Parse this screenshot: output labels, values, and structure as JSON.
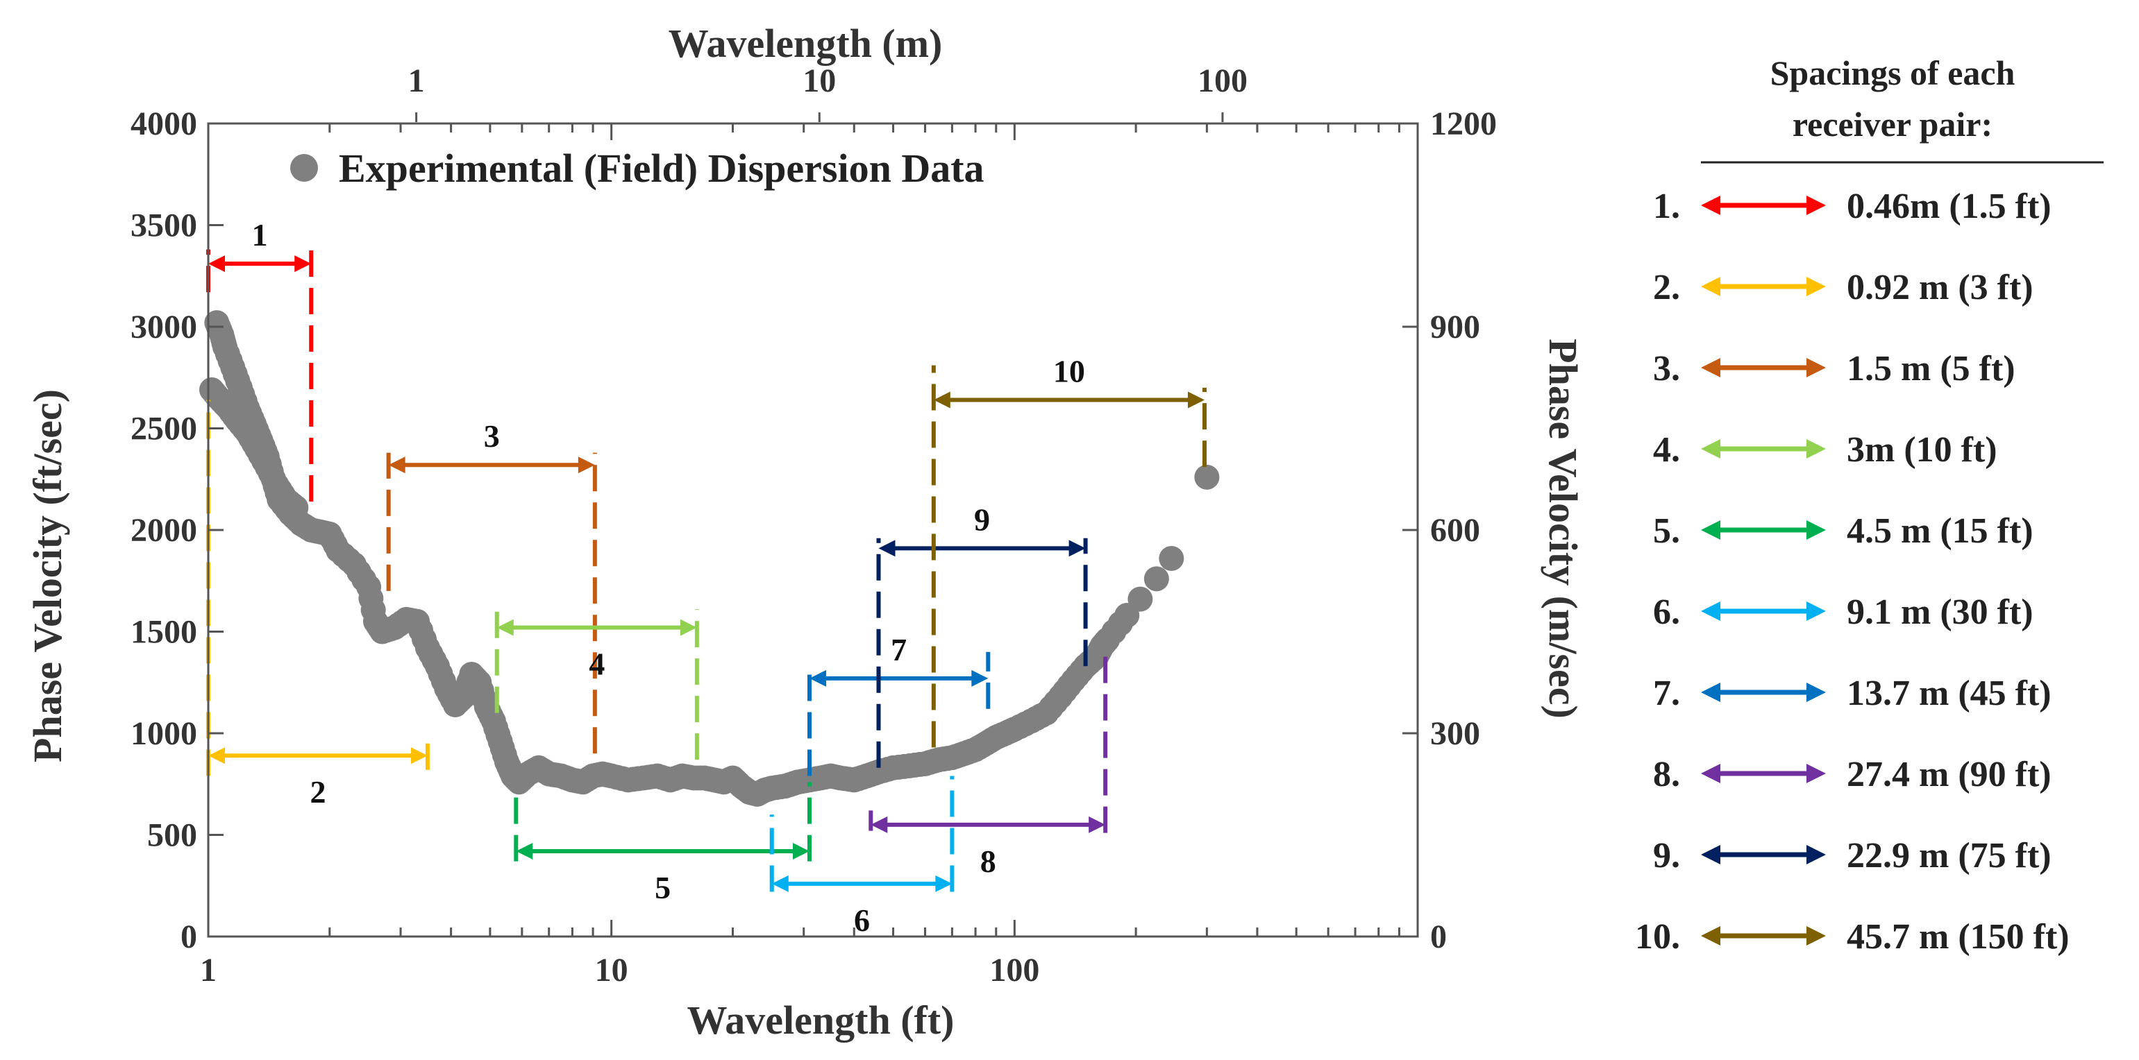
{
  "chart_data": {
    "type": "scatter",
    "x_scale": "log",
    "bottom_axis": {
      "label": "Wavelength (ft)",
      "range": [
        1,
        1000
      ],
      "ticks": [
        1,
        10,
        100
      ],
      "tick_labels": [
        "1",
        "10",
        "100"
      ]
    },
    "top_axis": {
      "label": "Wavelength (m)",
      "ticks": [
        1,
        10,
        100
      ],
      "tick_labels": [
        "1",
        "10",
        "100"
      ]
    },
    "left_axis": {
      "label": "Phase Velocity (ft/sec)",
      "range": [
        0,
        4000
      ],
      "ticks": [
        0,
        500,
        1000,
        1500,
        2000,
        2500,
        3000,
        3500,
        4000
      ],
      "tick_labels": [
        "0",
        "500",
        "1000",
        "1500",
        "2000",
        "2500",
        "3000",
        "3500",
        "4000"
      ]
    },
    "right_axis": {
      "label": "Phase Velocity (m/sec)",
      "ticks": [
        0,
        300,
        600,
        900,
        1200
      ],
      "tick_labels": [
        "0",
        "300",
        "600",
        "900",
        "1200"
      ]
    },
    "series": [
      {
        "name": "Experimental (Field) Dispersion Data",
        "marker_color": "#808080",
        "points": [
          [
            1.05,
            3020
          ],
          [
            1.08,
            2960
          ],
          [
            1.1,
            2900
          ],
          [
            1.15,
            2800
          ],
          [
            1.2,
            2700
          ],
          [
            1.25,
            2600
          ],
          [
            1.3,
            2520
          ],
          [
            1.35,
            2440
          ],
          [
            1.4,
            2360
          ],
          [
            1.45,
            2250
          ],
          [
            1.5,
            2150
          ],
          [
            1.6,
            2080
          ],
          [
            1.7,
            2030
          ],
          [
            1.8,
            2000
          ],
          [
            1.9,
            1990
          ],
          [
            2.0,
            1980
          ],
          [
            2.1,
            1900
          ],
          [
            2.3,
            1830
          ],
          [
            2.5,
            1720
          ],
          [
            2.6,
            1550
          ],
          [
            2.7,
            1500
          ],
          [
            2.9,
            1520
          ],
          [
            3.1,
            1560
          ],
          [
            3.3,
            1550
          ],
          [
            3.5,
            1420
          ],
          [
            3.7,
            1330
          ],
          [
            3.9,
            1220
          ],
          [
            4.1,
            1140
          ],
          [
            4.3,
            1180
          ],
          [
            4.5,
            1290
          ],
          [
            4.7,
            1250
          ],
          [
            4.9,
            1130
          ],
          [
            5.1,
            1060
          ],
          [
            5.3,
            960
          ],
          [
            5.5,
            860
          ],
          [
            5.7,
            790
          ],
          [
            5.9,
            760
          ],
          [
            6.2,
            800
          ],
          [
            6.6,
            830
          ],
          [
            7.0,
            800
          ],
          [
            7.5,
            790
          ],
          [
            8.0,
            770
          ],
          [
            8.5,
            760
          ],
          [
            9.0,
            790
          ],
          [
            9.5,
            800
          ],
          [
            10.0,
            790
          ],
          [
            11.0,
            770
          ],
          [
            12.0,
            780
          ],
          [
            13.0,
            790
          ],
          [
            14.0,
            770
          ],
          [
            15.0,
            790
          ],
          [
            16.0,
            780
          ],
          [
            17.0,
            780
          ],
          [
            18.0,
            770
          ],
          [
            19.0,
            760
          ],
          [
            20.0,
            780
          ],
          [
            21.0,
            740
          ],
          [
            22.0,
            710
          ],
          [
            23.0,
            700
          ],
          [
            24.0,
            720
          ],
          [
            25.0,
            730
          ],
          [
            27.0,
            740
          ],
          [
            29.0,
            760
          ],
          [
            31.0,
            770
          ],
          [
            33.0,
            780
          ],
          [
            35.0,
            790
          ],
          [
            37.0,
            780
          ],
          [
            40.0,
            770
          ],
          [
            43.0,
            790
          ],
          [
            46.0,
            810
          ],
          [
            50.0,
            830
          ],
          [
            55.0,
            840
          ],
          [
            60.0,
            850
          ],
          [
            65.0,
            870
          ],
          [
            70.0,
            880
          ],
          [
            75.0,
            900
          ],
          [
            80.0,
            920
          ],
          [
            85.0,
            950
          ],
          [
            90.0,
            980
          ],
          [
            95.0,
            1000
          ],
          [
            100.0,
            1020
          ],
          [
            110.0,
            1060
          ],
          [
            120.0,
            1100
          ],
          [
            130.0,
            1180
          ],
          [
            140.0,
            1260
          ],
          [
            150.0,
            1330
          ],
          [
            160.0,
            1380
          ],
          [
            165.0,
            1430
          ],
          [
            170.0,
            1460
          ],
          [
            190.0,
            1580
          ],
          [
            205.0,
            1660
          ],
          [
            225.0,
            1760
          ],
          [
            245.0,
            1860
          ],
          [
            300.0,
            2260
          ],
          [
            1.02,
            2690
          ],
          [
            1.06,
            2650
          ],
          [
            1.12,
            2600
          ],
          [
            1.18,
            2540
          ],
          [
            1.25,
            2480
          ],
          [
            1.32,
            2400
          ],
          [
            1.4,
            2310
          ],
          [
            1.48,
            2220
          ],
          [
            1.56,
            2150
          ],
          [
            1.65,
            2110
          ]
        ]
      }
    ],
    "ranges": [
      {
        "label": "1",
        "color": "#FF0000",
        "x1": 1.0,
        "x2": 1.8,
        "y_arrow": 3310,
        "dash_left": [
          3170,
          3380
        ],
        "dash_right": [
          2140,
          3380
        ],
        "label_dy": -1
      },
      {
        "label": "2",
        "color": "#FFC000",
        "x1": 1.0,
        "x2": 3.5,
        "y_arrow": 890,
        "dash_left": [
          790,
          2640
        ],
        "dash_right": [
          820,
          970
        ],
        "label_dy": 1
      },
      {
        "label": "3",
        "color": "#C55A11",
        "x1": 2.8,
        "x2": 9.1,
        "y_arrow": 2320,
        "dash_left": [
          1700,
          2380
        ],
        "dash_right": [
          900,
          2380
        ],
        "label_dy": -1
      },
      {
        "label": "4",
        "color": "#92D050",
        "x1": 5.2,
        "x2": 16.3,
        "y_arrow": 1520,
        "dash_left": [
          1100,
          1610
        ],
        "dash_right": [
          870,
          1610
        ],
        "label_dy": 1
      },
      {
        "label": "5",
        "color": "#00B050",
        "x1": 5.8,
        "x2": 31.0,
        "y_arrow": 420,
        "dash_left": [
          370,
          720
        ],
        "dash_right": [
          370,
          760
        ],
        "label_dy": 1
      },
      {
        "label": "6",
        "color": "#00B0F0",
        "x1": 25.0,
        "x2": 70.0,
        "y_arrow": 260,
        "dash_left": [
          220,
          600
        ],
        "dash_right": [
          220,
          790
        ],
        "label_dy": 1
      },
      {
        "label": "7",
        "color": "#0070C0",
        "x1": 31.0,
        "x2": 86.0,
        "y_arrow": 1270,
        "dash_left": [
          790,
          1320
        ],
        "dash_right": [
          1120,
          1400
        ],
        "label_dy": -1
      },
      {
        "label": "8",
        "color": "#7030A0",
        "x1": 44.0,
        "x2": 168.0,
        "y_arrow": 550,
        "dash_left": [
          520,
          620
        ],
        "dash_right": [
          510,
          1430
        ],
        "label_dy": 1
      },
      {
        "label": "9",
        "color": "#002060",
        "x1": 46.0,
        "x2": 150.0,
        "y_arrow": 1910,
        "dash_left": [
          830,
          1960
        ],
        "dash_right": [
          1330,
          1960
        ],
        "label_dy": -1
      },
      {
        "label": "10",
        "color": "#7F6000",
        "x1": 63.0,
        "x2": 296.0,
        "y_arrow": 2640,
        "dash_left": [
          930,
          2810
        ],
        "dash_right": [
          2310,
          2700
        ],
        "label_dy": -1
      }
    ],
    "legend": {
      "title_line1": "Spacings of each",
      "title_line2": "receiver pair:",
      "items": [
        {
          "index": "1.",
          "label": "0.46m (1.5 ft)",
          "color": "#FF0000"
        },
        {
          "index": "2.",
          "label": "0.92 m (3 ft)",
          "color": "#FFC000"
        },
        {
          "index": "3.",
          "label": "1.5 m (5 ft)",
          "color": "#C55A11"
        },
        {
          "index": "4.",
          "label": "3m (10 ft)",
          "color": "#92D050"
        },
        {
          "index": "5.",
          "label": "4.5 m (15 ft)",
          "color": "#00B050"
        },
        {
          "index": "6.",
          "label": "9.1 m (30 ft)",
          "color": "#00B0F0"
        },
        {
          "index": "7.",
          "label": "13.7 m (45 ft)",
          "color": "#0070C0"
        },
        {
          "index": "8.",
          "label": "27.4 m (90 ft)",
          "color": "#7030A0"
        },
        {
          "index": "9.",
          "label": "22.9 m (75 ft)",
          "color": "#002060"
        },
        {
          "index": "10.",
          "label": "45.7 m (150 ft)",
          "color": "#7F6000"
        }
      ]
    }
  }
}
